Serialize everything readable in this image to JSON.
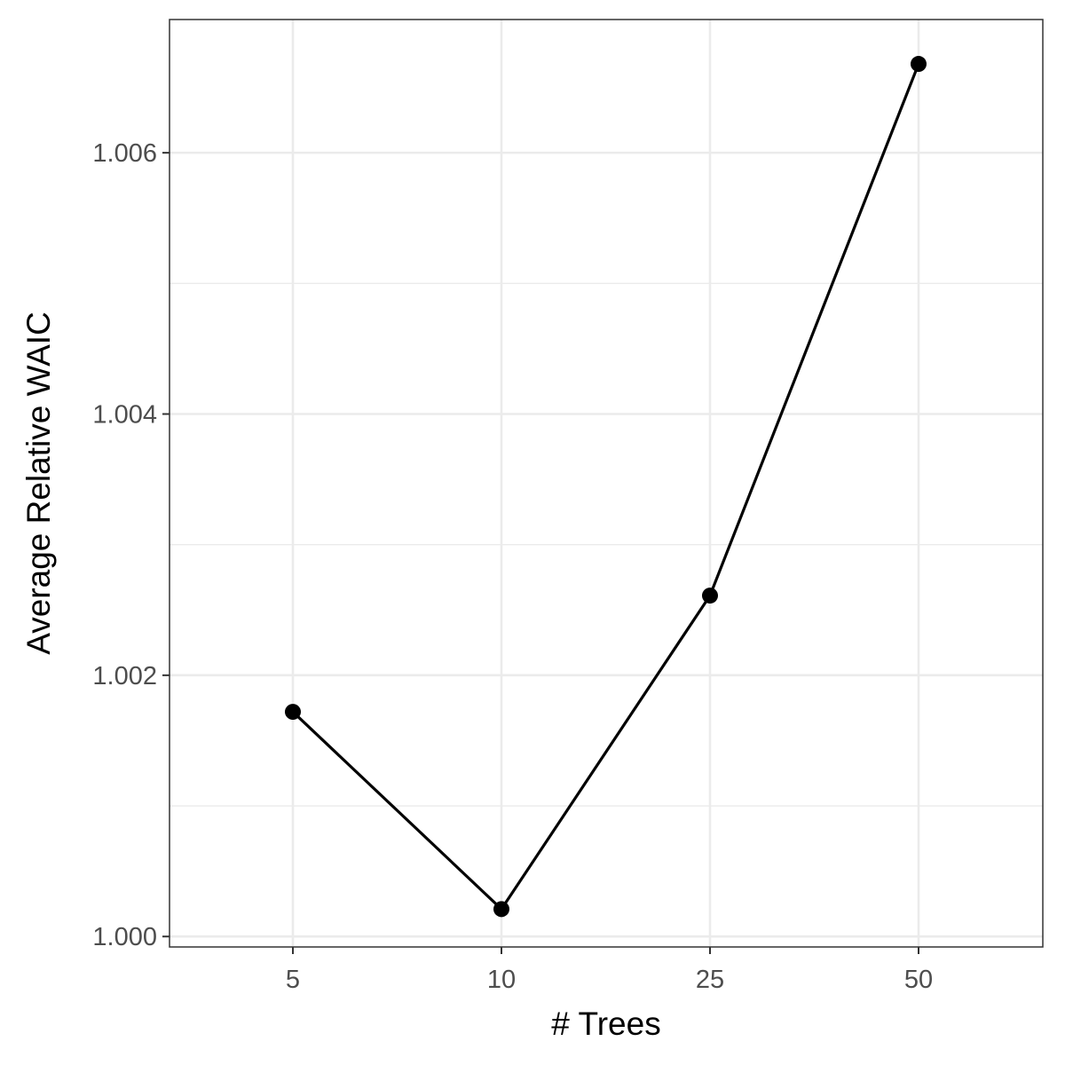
{
  "chart_data": {
    "type": "line",
    "xlabel": "# Trees",
    "ylabel": "Average Relative WAIC",
    "x_type": "categorical",
    "categories": [
      "5",
      "10",
      "25",
      "50"
    ],
    "series": [
      {
        "values": [
          1.00172,
          1.00021,
          1.00261,
          1.00668
        ]
      }
    ],
    "ylim": [
      0.99992,
      1.00702
    ],
    "yticks": [
      1.0,
      1.002,
      1.004,
      1.006
    ],
    "ytick_labels": [
      "1.000",
      "1.002",
      "1.004",
      "1.006"
    ],
    "y_minor_ticks": [
      1.001,
      1.003,
      1.005
    ],
    "grid": true,
    "legend": "none",
    "colors": {
      "line": "#000000",
      "points": "#000000",
      "grid": "#ebebeb",
      "panel_border": "#333333"
    },
    "theme": "bw"
  }
}
